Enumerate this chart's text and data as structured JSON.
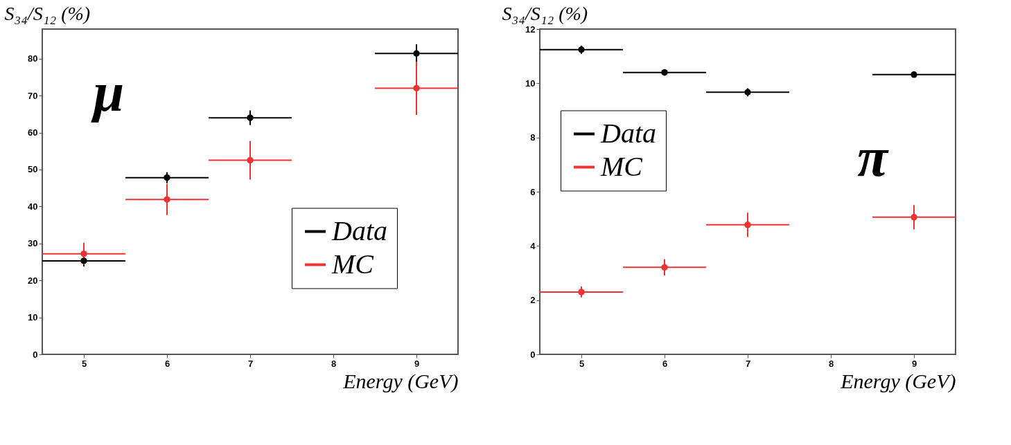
{
  "chart_data": [
    {
      "type": "scatter",
      "xlabel": "Energy (GeV)",
      "ylabel": "S₃₄/S₁₂ (%)",
      "x": [
        5,
        6,
        7,
        9
      ],
      "xlim": [
        4.5,
        9.5
      ],
      "xticks": [
        5,
        6,
        7,
        8,
        9
      ],
      "ylim": [
        0,
        88
      ],
      "yticks": [
        0,
        10,
        20,
        30,
        40,
        50,
        60,
        70,
        80
      ],
      "grid": false,
      "legend": "bottom right",
      "series": [
        {
          "name": "Data",
          "color": "#000000",
          "values": [
            25.3,
            47.8,
            64.0,
            81.4
          ],
          "errors": [
            1.5,
            1.5,
            2,
            2.5
          ],
          "xerrors": [
            0.5,
            0.5,
            0.5,
            0.5
          ]
        },
        {
          "name": "MC",
          "color": "#ee3333",
          "values": [
            27.2,
            41.9,
            52.5,
            72.0
          ],
          "errors": [
            3,
            4.2,
            5.2,
            7.2
          ],
          "xerrors": [
            0.5,
            0.5,
            0.5,
            0.5
          ]
        }
      ],
      "annotations": [
        "μ"
      ]
    },
    {
      "type": "scatter",
      "xlabel": "Energy (GeV)",
      "ylabel": "S₃₄/S₁₂ (%)",
      "x": [
        5,
        6,
        7,
        9
      ],
      "xlim": [
        4.5,
        9.5
      ],
      "xticks": [
        5,
        6,
        7,
        8,
        9
      ],
      "ylim": [
        0,
        12
      ],
      "yticks": [
        0,
        2,
        4,
        6,
        8,
        10,
        12
      ],
      "grid": false,
      "legend": "left",
      "series": [
        {
          "name": "Data",
          "color": "#000000",
          "values": [
            11.24,
            10.4,
            9.67,
            10.32
          ],
          "errors": [
            0.15,
            0.1,
            0.15,
            0.1
          ],
          "xerrors": [
            0.5,
            0.5,
            0.5,
            0.5
          ]
        },
        {
          "name": "MC",
          "color": "#ee3333",
          "values": [
            2.3,
            3.21,
            4.78,
            5.06
          ],
          "errors": [
            0.2,
            0.3,
            0.45,
            0.45
          ],
          "xerrors": [
            0.5,
            0.5,
            0.5,
            0.5
          ]
        }
      ],
      "annotations": [
        "π"
      ]
    }
  ]
}
